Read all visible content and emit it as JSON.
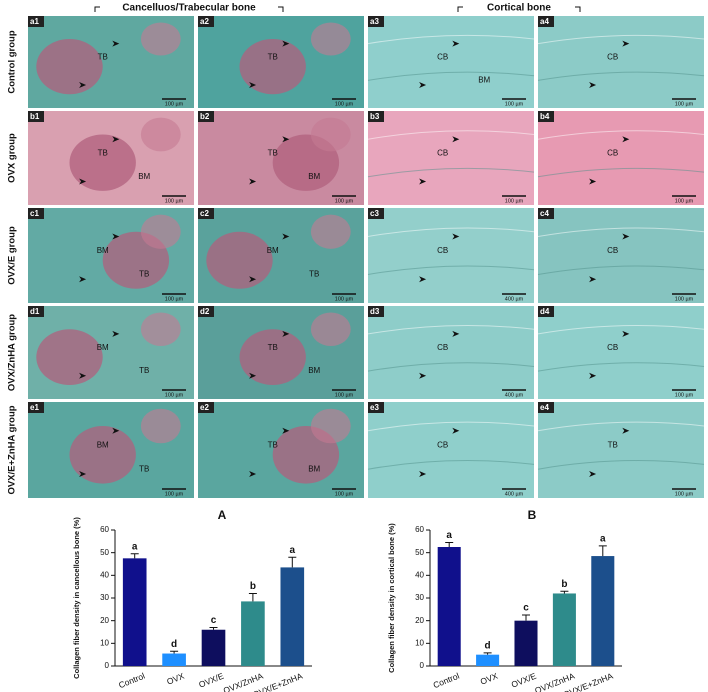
{
  "figure": {
    "headers": [
      "Cancelluos/Trabecular bone",
      "Cortical bone"
    ],
    "groups": [
      "Control group",
      "OVX group",
      "OVX/E group",
      "OVX/ZnHA group",
      "OVX/E+ZnHA group"
    ],
    "panels": [
      {
        "id": "a1",
        "labels": [
          "TB"
        ],
        "scale": "100 µm"
      },
      {
        "id": "a2",
        "labels": [
          "TB"
        ],
        "scale": "100 µm"
      },
      {
        "id": "a3",
        "labels": [
          "CB",
          "BM"
        ],
        "scale": "100 µm"
      },
      {
        "id": "a4",
        "labels": [
          "CB"
        ],
        "scale": "100 µm"
      },
      {
        "id": "b1",
        "labels": [
          "TB",
          "BM"
        ],
        "scale": "100 µm"
      },
      {
        "id": "b2",
        "labels": [
          "TB",
          "BM"
        ],
        "scale": "100 µm"
      },
      {
        "id": "b3",
        "labels": [
          "CB"
        ],
        "scale": "100 µm"
      },
      {
        "id": "b4",
        "labels": [
          "CB"
        ],
        "scale": "100 µm"
      },
      {
        "id": "c1",
        "labels": [
          "BM",
          "TB"
        ],
        "scale": "100 µm"
      },
      {
        "id": "c2",
        "labels": [
          "BM",
          "TB"
        ],
        "scale": "100 µm"
      },
      {
        "id": "c3",
        "labels": [
          "CB"
        ],
        "scale": "400 µm"
      },
      {
        "id": "c4",
        "labels": [
          "CB"
        ],
        "scale": "100 µm"
      },
      {
        "id": "d1",
        "labels": [
          "BM",
          "TB"
        ],
        "scale": "100 µm"
      },
      {
        "id": "d2",
        "labels": [
          "TB",
          "BM"
        ],
        "scale": "100 µm"
      },
      {
        "id": "d3",
        "labels": [
          "CB"
        ],
        "scale": "400 µm"
      },
      {
        "id": "d4",
        "labels": [
          "CB"
        ],
        "scale": "100 µm"
      },
      {
        "id": "e1",
        "labels": [
          "BM",
          "TB"
        ],
        "scale": "100 µm"
      },
      {
        "id": "e2",
        "labels": [
          "TB",
          "BM"
        ],
        "scale": "100 µm"
      },
      {
        "id": "e3",
        "labels": [
          "CB"
        ],
        "scale": "400 µm"
      },
      {
        "id": "e4",
        "labels": [
          "TB"
        ],
        "scale": "100 µm"
      }
    ]
  },
  "chart_data": [
    {
      "type": "bar",
      "panel_label": "A",
      "ylabel": "Collagen fiber density in cancellous bone (%)",
      "categories": [
        "Control",
        "OVX",
        "OVX/E",
        "OVX/ZnHA",
        "OVX/E+ZnHA"
      ],
      "values": [
        47.5,
        5.5,
        16,
        28.5,
        43.5
      ],
      "errors": [
        2,
        1,
        1,
        3.5,
        4.5
      ],
      "annotations": [
        "a",
        "d",
        "c",
        "b",
        "a"
      ],
      "colors": [
        "#10108c",
        "#1e8fff",
        "#0e0e5e",
        "#2e8b8b",
        "#1c4f8c"
      ],
      "ylim": [
        0,
        60
      ],
      "yticks": [
        0,
        10,
        20,
        30,
        40,
        50,
        60
      ]
    },
    {
      "type": "bar",
      "panel_label": "B",
      "ylabel": "Collagen fiber density in cortical bone (%)",
      "categories": [
        "Control",
        "OVX",
        "OVX/E",
        "OVX/ZnHA",
        "OVX/E+ZnHA"
      ],
      "values": [
        52.5,
        5,
        20,
        32,
        48.5
      ],
      "errors": [
        2,
        0.8,
        2.5,
        1,
        4.5
      ],
      "annotations": [
        "a",
        "d",
        "c",
        "b",
        "a"
      ],
      "colors": [
        "#10108c",
        "#1e8fff",
        "#0e0e5e",
        "#2e8b8b",
        "#1c4f8c"
      ],
      "ylim": [
        0,
        60
      ],
      "yticks": [
        0,
        10,
        20,
        30,
        40,
        50,
        60
      ]
    }
  ]
}
